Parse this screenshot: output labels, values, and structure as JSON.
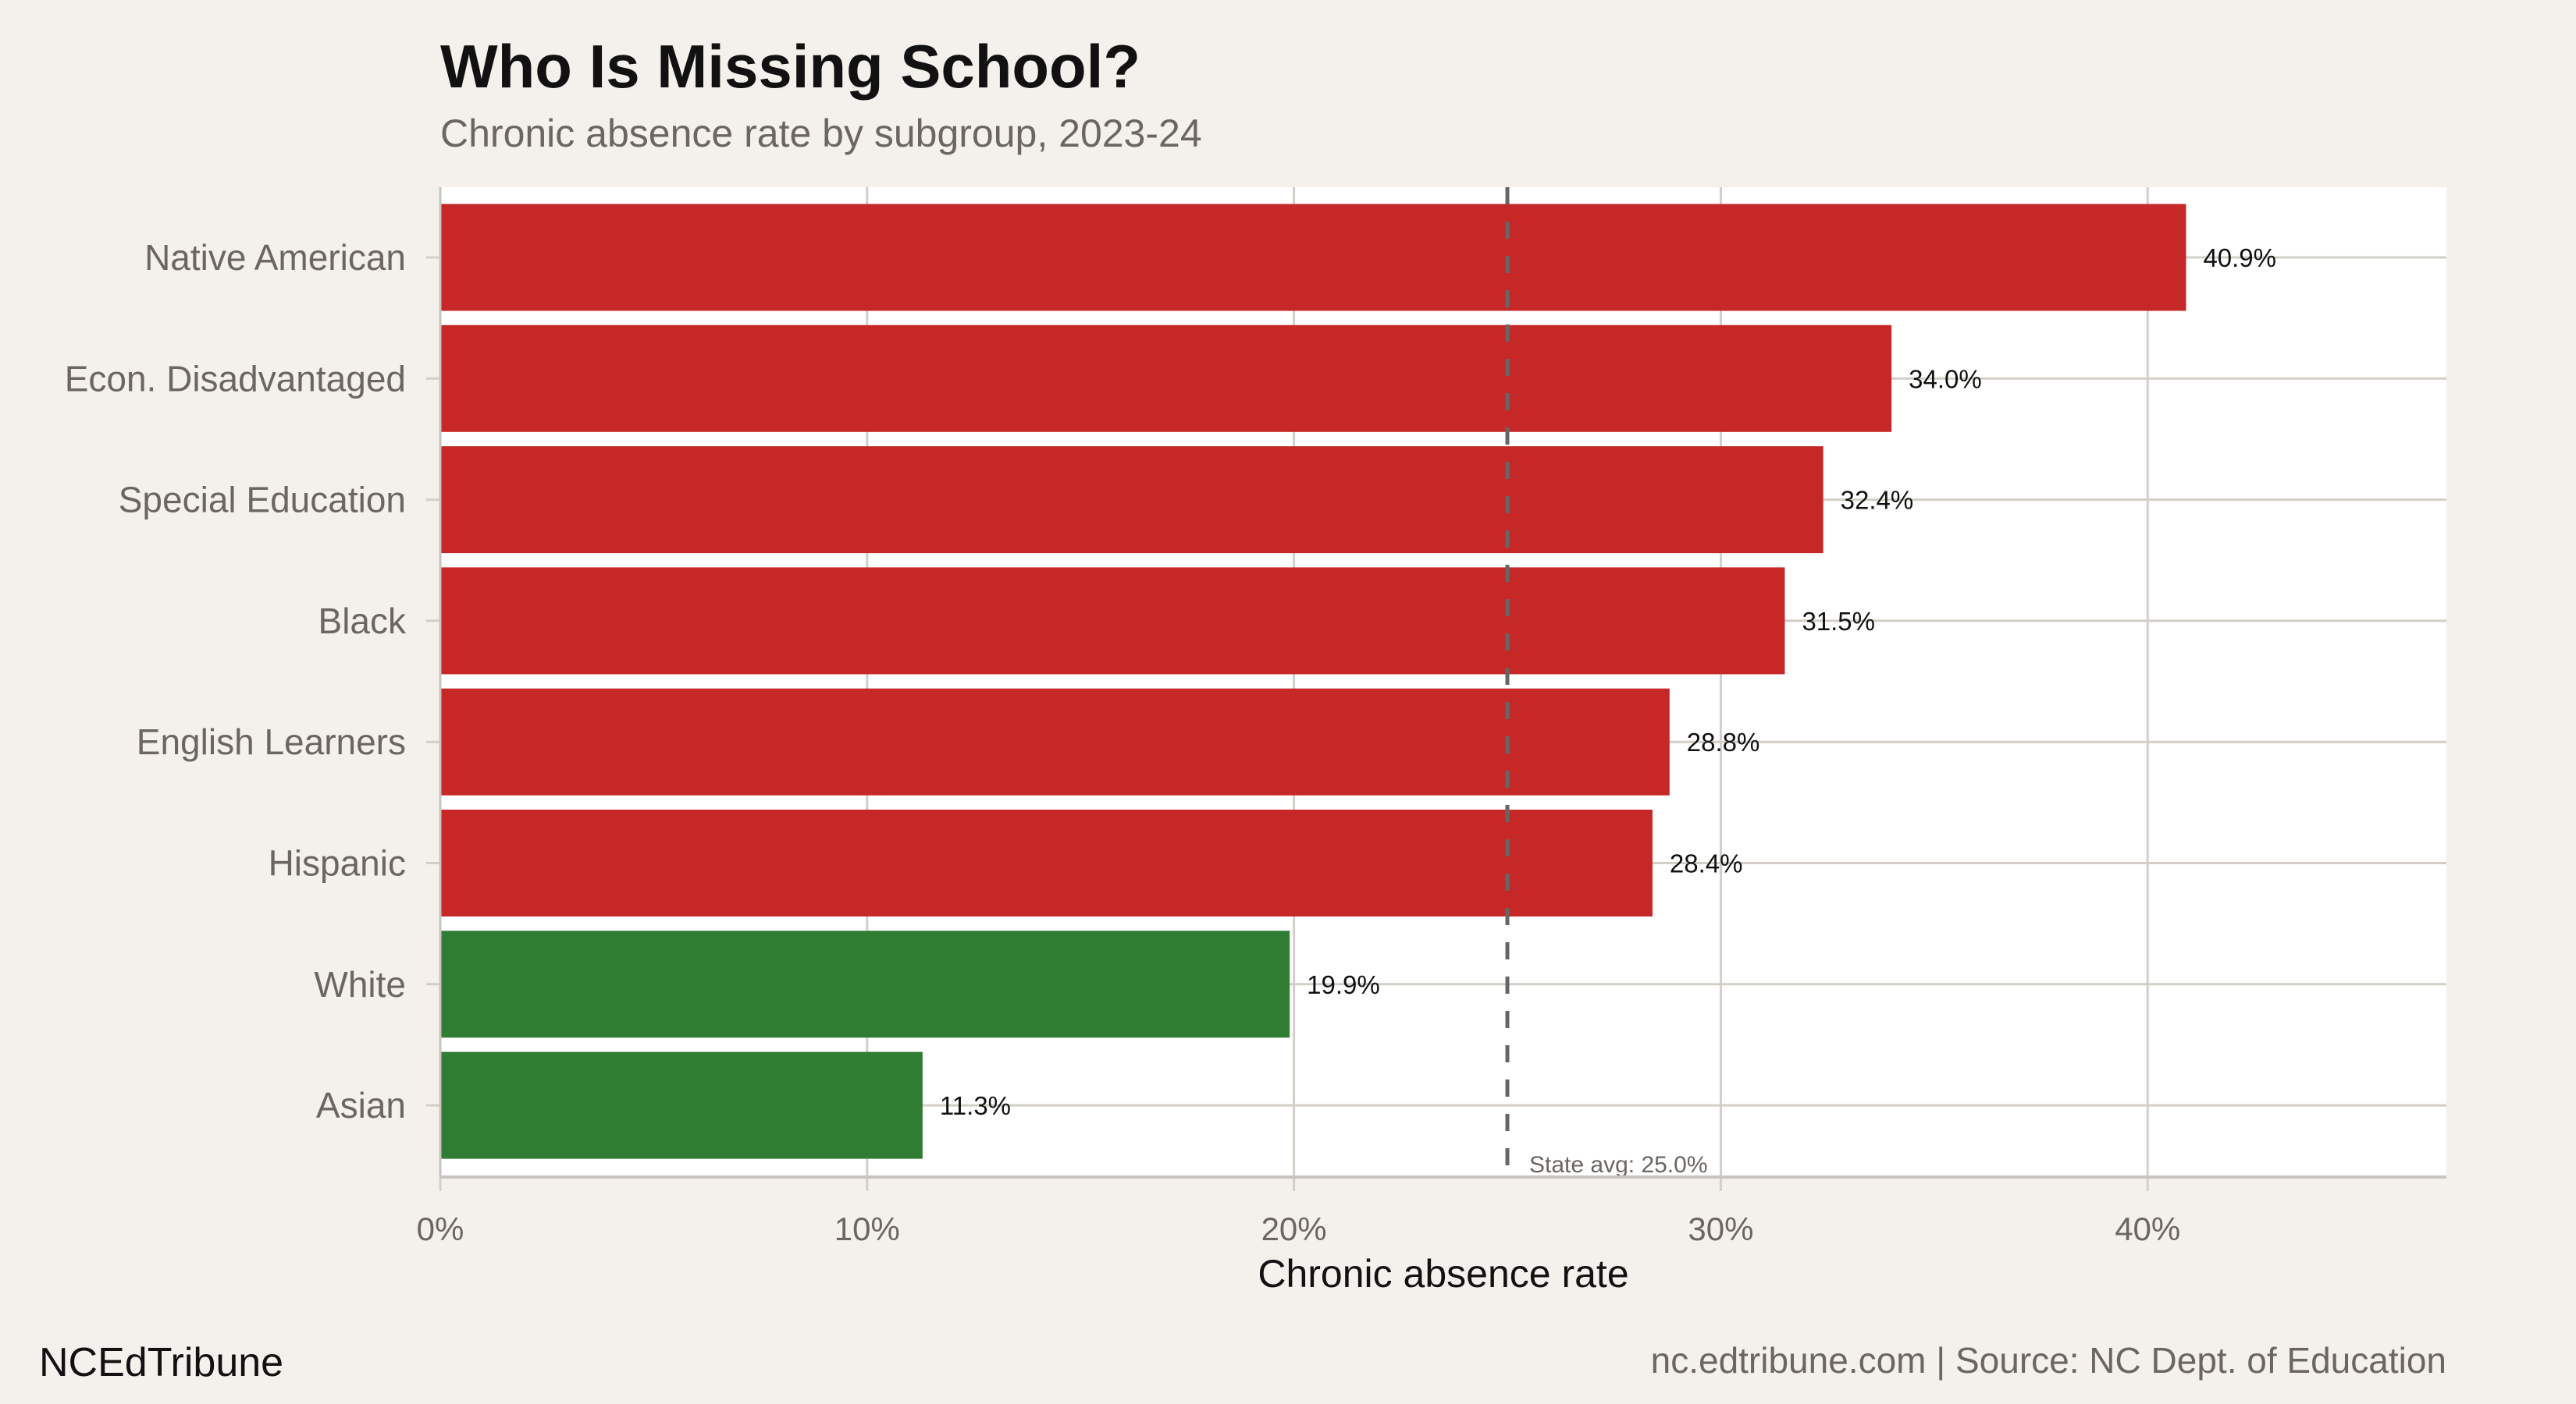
{
  "chart_data": {
    "type": "bar",
    "orientation": "horizontal",
    "title": "Who Is Missing School?",
    "subtitle": "Chronic absence rate by subgroup, 2023-24",
    "xlabel": "Chronic absence rate",
    "ylabel": "",
    "xlim": [
      0,
      47
    ],
    "x_ticks": [
      0,
      10,
      20,
      30,
      40
    ],
    "x_tick_labels": [
      "0%",
      "10%",
      "20%",
      "30%",
      "40%"
    ],
    "grid": true,
    "categories": [
      "Native American",
      "Econ. Disadvantaged",
      "Special Education",
      "Black",
      "English Learners",
      "Hispanic",
      "White",
      "Asian"
    ],
    "values": [
      40.9,
      34.0,
      32.4,
      31.5,
      28.8,
      28.4,
      19.9,
      11.3
    ],
    "value_labels": [
      "40.9%",
      "34.0%",
      "32.4%",
      "31.5%",
      "28.8%",
      "28.4%",
      "19.9%",
      "11.3%"
    ],
    "above_average": [
      true,
      true,
      true,
      true,
      true,
      true,
      false,
      false
    ],
    "reference_line": {
      "value": 25.0,
      "label": "State avg: 25.0%",
      "style": "dashed"
    },
    "colors": {
      "above": "#C62828",
      "below": "#2E7D32",
      "reference": "#666666",
      "panel": "#FFFFFF",
      "background": "#F4F1EC",
      "grid": "#D3CFC8"
    }
  },
  "footer": {
    "brand": "NCEdTribune",
    "caption": "nc.edtribune.com | Source: NC Dept. of Education"
  }
}
